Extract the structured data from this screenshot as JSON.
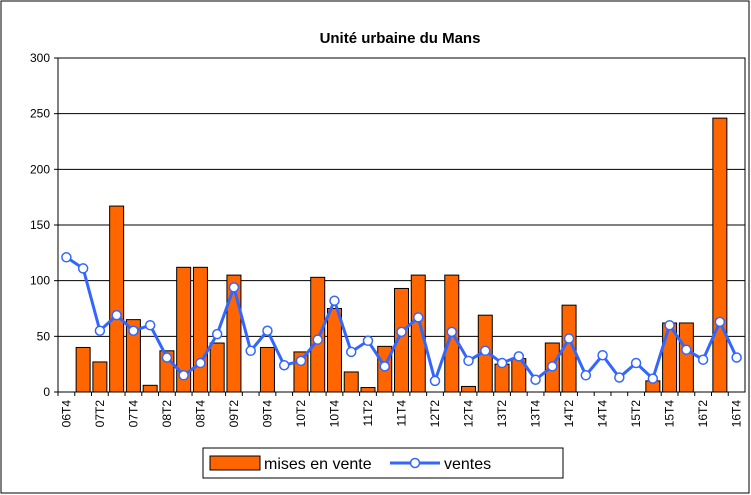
{
  "chart_data": {
    "type": "bar_line",
    "title": "Unité urbaine du Mans",
    "categories": [
      "06T4",
      null,
      "07T2",
      null,
      "07T4",
      null,
      "08T2",
      null,
      "08T4",
      null,
      "09T2",
      null,
      "09T4",
      null,
      "10T2",
      null,
      "10T4",
      null,
      "11T2",
      null,
      "11T4",
      null,
      "12T2",
      null,
      "12T4",
      null,
      "13T2",
      null,
      "13T4",
      null,
      "14T2",
      null,
      "14T4",
      null,
      "15T2",
      null,
      "15T4",
      null,
      "16T2",
      null,
      "16T4"
    ],
    "series": [
      {
        "name": "mises en vente",
        "type": "bar",
        "color": "#ff6600",
        "values": [
          0,
          40,
          27,
          167,
          65,
          6,
          37,
          112,
          112,
          44,
          105,
          0,
          40,
          0,
          36,
          103,
          75,
          18,
          4,
          41,
          93,
          105,
          0,
          105,
          5,
          69,
          25,
          30,
          0,
          44,
          78,
          0,
          0,
          0,
          0,
          10,
          62,
          62,
          0,
          246,
          0
        ]
      },
      {
        "name": "ventes",
        "type": "line",
        "color": "#3366ff",
        "values": [
          121,
          111,
          55,
          69,
          55,
          60,
          31,
          15,
          26,
          52,
          94,
          37,
          55,
          24,
          28,
          47,
          82,
          36,
          46,
          23,
          54,
          67,
          10,
          54,
          28,
          37,
          26,
          32,
          11,
          23,
          48,
          15,
          33,
          13,
          26,
          12,
          60,
          38,
          29,
          63,
          31
        ]
      }
    ],
    "ylim": [
      0,
      300
    ],
    "yticks": [
      0,
      50,
      100,
      150,
      200,
      250,
      300
    ],
    "grid": true,
    "legend": "bottom"
  }
}
